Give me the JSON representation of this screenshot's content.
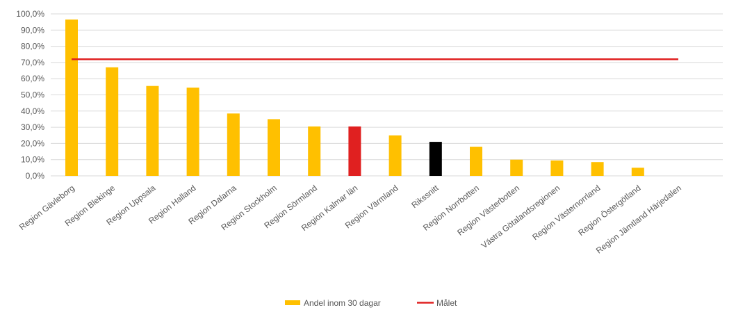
{
  "chart_data": {
    "type": "bar",
    "categories": [
      "Region Gävleborg",
      "Region Blekinge",
      "Region Uppsala",
      "Region Halland",
      "Region Dalarna",
      "Region Stockholm",
      "Region Sörmland",
      "Region Kalmar län",
      "Region Värmland",
      "Rikssnitt",
      "Region Norrbotten",
      "Region Västerbotten",
      "Västra Götalandsregionen",
      "Region Västernorrland",
      "Region Östergötland",
      "Region Jämtland Härjedalen"
    ],
    "series": [
      {
        "name": "Andel inom 30 dagar",
        "values": [
          96.5,
          67.0,
          55.5,
          54.5,
          38.5,
          35.0,
          30.5,
          30.5,
          25.0,
          21.0,
          18.0,
          10.0,
          9.5,
          8.5,
          5.0,
          0.0
        ],
        "color": "#FFC000",
        "point_colors": [
          "#FFC000",
          "#FFC000",
          "#FFC000",
          "#FFC000",
          "#FFC000",
          "#FFC000",
          "#FFC000",
          "#E02020",
          "#FFC000",
          "#000000",
          "#FFC000",
          "#FFC000",
          "#FFC000",
          "#FFC000",
          "#FFC000",
          "#FFC000"
        ]
      },
      {
        "name": "Målet",
        "type": "line",
        "value": 72.0,
        "color": "#E02020"
      }
    ],
    "yticks": [
      "0,0%",
      "10,0%",
      "20,0%",
      "30,0%",
      "40,0%",
      "50,0%",
      "60,0%",
      "70,0%",
      "80,0%",
      "90,0%",
      "100,0%"
    ],
    "ylim": [
      0,
      100
    ],
    "grid": true,
    "legend_position": "bottom"
  }
}
